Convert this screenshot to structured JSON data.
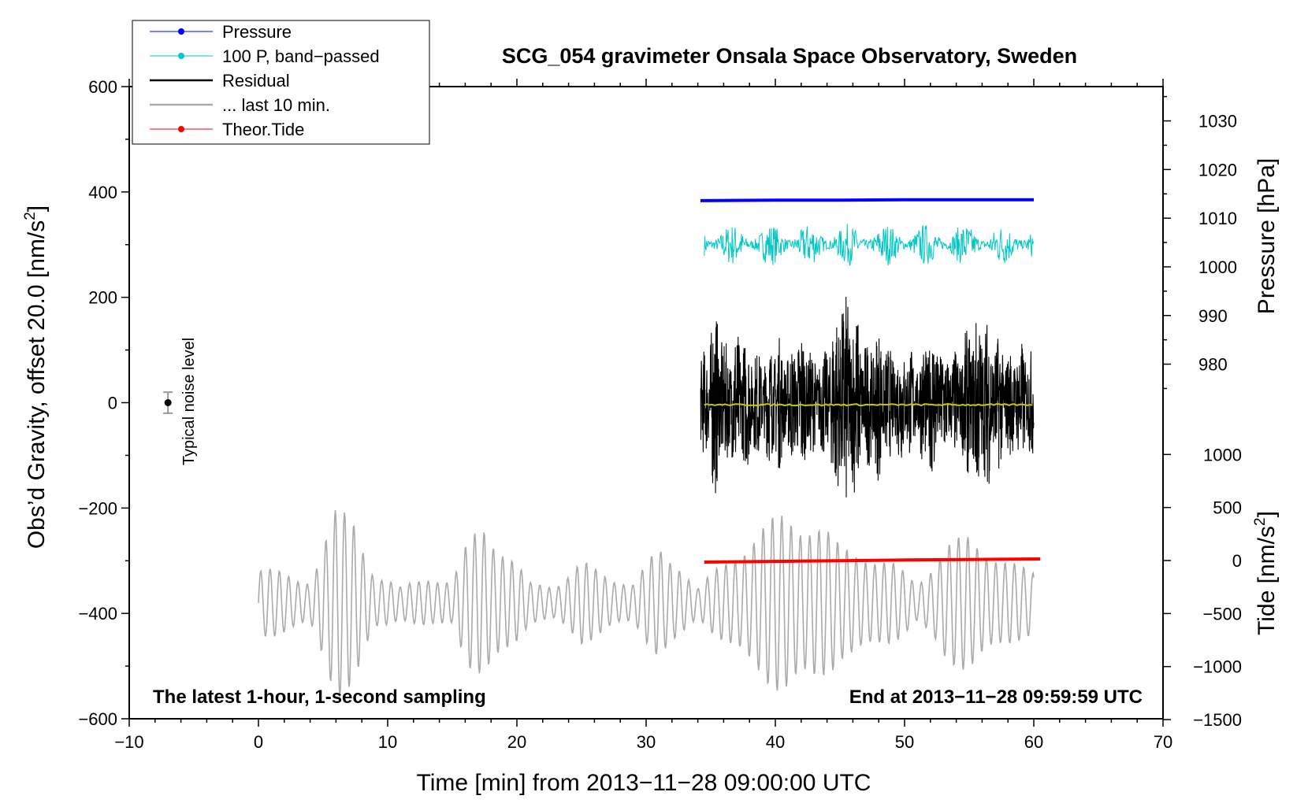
{
  "chart_data": {
    "type": "line",
    "title": "SCG_054 gravimeter Onsala Space Observatory, Sweden",
    "xlabel": "Time [min] from 2013−11−28 09:00:00 UTC",
    "ylabel_main": "Obs’d Gravity, offset 20.0 [nm/s",
    "ylabel_main_sup": "2",
    "ylabel_main_end": "]",
    "ylabel_pressure": "Pressure [hPa]",
    "ylabel_tide": "Tide [nm/s",
    "ylabel_tide_sup": "2",
    "ylabel_tide_end": "]",
    "xlim": [
      -10,
      70
    ],
    "ylim": [
      -600,
      600
    ],
    "pressure_axis_ticks": [
      980,
      990,
      1000,
      1010,
      1020,
      1030
    ],
    "tide_axis_ticks": [
      -1500,
      -1000,
      -500,
      0,
      500,
      1000
    ],
    "annotations": {
      "left": "The latest 1-hour, 1-second sampling",
      "right": "End at 2013−11−28 09:59:59 UTC",
      "noise": "Typical noise level"
    },
    "legend": {
      "placement": "top-left",
      "items": [
        {
          "label": "Pressure",
          "color": "#0000ff",
          "marker": "dot"
        },
        {
          "label": "100 P, band−passed",
          "color": "#00c8c8",
          "marker": "dot"
        },
        {
          "label": "Residual",
          "color": "#000000",
          "marker": "none"
        },
        {
          "label": "... last 10 min.",
          "color": "#aaaaaa",
          "marker": "none"
        },
        {
          "label": "Theor.Tide",
          "color": "#ff0000",
          "marker": "dot"
        }
      ]
    },
    "noise_marker": {
      "x": -7,
      "y": 0,
      "error": 20
    },
    "series": [
      {
        "name": "Pressure",
        "color": "#0000ff",
        "x": [
          34.2,
          40,
          45,
          50,
          55,
          60
        ],
        "pressure_hPa": [
          1013.6,
          1013.7,
          1013.7,
          1013.8,
          1013.8,
          1013.8
        ]
      },
      {
        "name": "100 P, band−passed",
        "color": "#00c8c8",
        "x_range": [
          34.5,
          60
        ],
        "approx_mean": 300,
        "approx_amplitude": 40
      },
      {
        "name": "Residual",
        "color": "#000000",
        "x_range": [
          34.2,
          60
        ],
        "approx_mean": 0,
        "approx_envelope": [
          [
            34.2,
            80
          ],
          [
            35,
            150
          ],
          [
            35.5,
            200
          ],
          [
            36,
            110
          ],
          [
            37,
            150
          ],
          [
            38,
            120
          ],
          [
            39,
            90
          ],
          [
            40,
            140
          ],
          [
            41,
            100
          ],
          [
            42,
            150
          ],
          [
            43,
            90
          ],
          [
            44,
            110
          ],
          [
            45,
            220
          ],
          [
            46,
            200
          ],
          [
            47,
            120
          ],
          [
            48,
            150
          ],
          [
            49,
            100
          ],
          [
            50,
            120
          ],
          [
            51,
            90
          ],
          [
            52,
            150
          ],
          [
            53,
            110
          ],
          [
            54,
            100
          ],
          [
            55,
            150
          ],
          [
            56,
            180
          ],
          [
            57,
            140
          ],
          [
            58,
            100
          ],
          [
            59,
            120
          ],
          [
            60,
            100
          ]
        ]
      },
      {
        "name": "... last 10 min.",
        "color": "#aaaaaa",
        "x_range": [
          0,
          60
        ],
        "approx_mean": -380,
        "approx_envelope": [
          [
            0,
            70
          ],
          [
            2,
            60
          ],
          [
            4,
            50
          ],
          [
            6,
            180
          ],
          [
            7.5,
            180
          ],
          [
            9,
            60
          ],
          [
            11,
            30
          ],
          [
            13,
            60
          ],
          [
            15,
            40
          ],
          [
            16.5,
            140
          ],
          [
            17.5,
            180
          ],
          [
            19,
            110
          ],
          [
            21,
            40
          ],
          [
            23,
            40
          ],
          [
            25,
            80
          ],
          [
            27,
            60
          ],
          [
            29,
            40
          ],
          [
            31,
            110
          ],
          [
            32.5,
            90
          ],
          [
            34,
            30
          ],
          [
            36,
            80
          ],
          [
            38,
            140
          ],
          [
            41,
            180
          ],
          [
            43,
            180
          ],
          [
            45,
            110
          ],
          [
            47,
            110
          ],
          [
            49,
            80
          ],
          [
            51,
            40
          ],
          [
            53,
            120
          ],
          [
            55,
            130
          ],
          [
            57,
            110
          ],
          [
            59,
            70
          ],
          [
            60,
            60
          ]
        ]
      },
      {
        "name": "Theor.Tide",
        "color": "#ff0000",
        "x": [
          34.5,
          40,
          45,
          50,
          55,
          60.5
        ],
        "tide_nm_s2": [
          -15,
          -8,
          -2,
          5,
          10,
          15
        ]
      },
      {
        "name": "residual-smoothed",
        "color": "#c8c800",
        "x_range": [
          34.5,
          60
        ],
        "approx_value": -4
      }
    ]
  }
}
